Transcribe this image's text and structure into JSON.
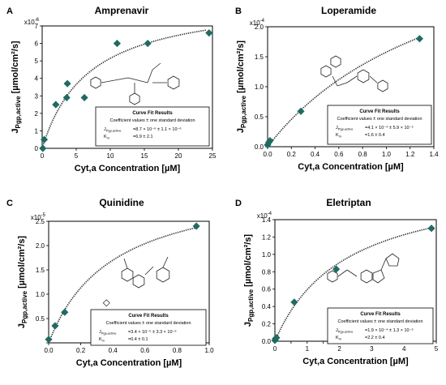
{
  "chart_data": [
    {
      "letter": "A",
      "title": "Amprenavir",
      "type": "scatter",
      "xlabel": "Cyt,a Concentration [µM]",
      "ylabel": "J_Pgp,active [µmol/cm²/s]",
      "y_multiplier": "x10",
      "y_exponent": "-6",
      "xlim": [
        0,
        25
      ],
      "ylim": [
        0,
        7
      ],
      "xticks": [
        0,
        5,
        10,
        15,
        20,
        25
      ],
      "yticks": [
        0,
        1,
        2,
        3,
        4,
        5,
        6,
        7
      ],
      "xtick_labels": [
        "0",
        "5",
        "10",
        "15",
        "20",
        "25"
      ],
      "ytick_labels": [
        "0",
        "1",
        "2",
        "3",
        "4",
        "5",
        "6",
        "7"
      ],
      "points": [
        {
          "x": 0.1,
          "y": 0.0,
          "marker": "filled"
        },
        {
          "x": 0.3,
          "y": 0.5,
          "marker": "filled"
        },
        {
          "x": 2.0,
          "y": 2.5,
          "marker": "filled"
        },
        {
          "x": 3.6,
          "y": 2.9,
          "marker": "filled"
        },
        {
          "x": 3.7,
          "y": 3.7,
          "marker": "filled"
        },
        {
          "x": 6.2,
          "y": 2.9,
          "marker": "filled"
        },
        {
          "x": 11.0,
          "y": 6.0,
          "marker": "filled"
        },
        {
          "x": 15.5,
          "y": 6.0,
          "marker": "filled"
        },
        {
          "x": 24.5,
          "y": 6.6,
          "marker": "filled"
        }
      ],
      "fit": {
        "vmax": 8.7,
        "km": 6.9
      },
      "fitbox": {
        "title": "Curve Fit Results",
        "subtitle": "Coefficient values ± one standard deviation",
        "row1_label": "J_Pgp,active",
        "row1_value": "=8.7 × 10⁻⁶ ± 1.1 × 10⁻⁶",
        "row2_label": "K_m",
        "row2_value": "=6.9 ± 2.1"
      },
      "structure": "amprenavir-structure"
    },
    {
      "letter": "B",
      "title": "Loperamide",
      "type": "scatter",
      "xlabel": "Cyt,a Concentration [µM]",
      "ylabel": "J_Pgp,active [µmol/cm²/s]",
      "y_multiplier": "x10",
      "y_exponent": "-4",
      "xlim": [
        0,
        1.4
      ],
      "ylim": [
        0,
        2.0
      ],
      "xticks": [
        0,
        0.2,
        0.4,
        0.6,
        0.8,
        1.0,
        1.2,
        1.4
      ],
      "yticks": [
        0,
        0.5,
        1.0,
        1.5,
        2.0
      ],
      "xtick_labels": [
        "0.0",
        "0.2",
        "0.4",
        "0.6",
        "0.8",
        "1.0",
        "1.2",
        "1.4"
      ],
      "ytick_labels": [
        "0.0",
        "0.5",
        "1.0",
        "1.5",
        "2.0"
      ],
      "points": [
        {
          "x": 0.0,
          "y": 0.03,
          "marker": "filled"
        },
        {
          "x": 0.01,
          "y": 0.07,
          "marker": "filled"
        },
        {
          "x": 0.02,
          "y": 0.1,
          "marker": "filled"
        },
        {
          "x": 0.28,
          "y": 0.59,
          "marker": "filled"
        },
        {
          "x": 1.28,
          "y": 1.8,
          "marker": "filled"
        }
      ],
      "fit": {
        "vmax": 4.1,
        "km": 1.6
      },
      "fitbox": {
        "title": "Curve Fit Results",
        "subtitle": "Coefficient values ± one standard deviation",
        "row1_label": "J_Pgp,active",
        "row1_value": "=4.1 × 10⁻⁴ ± 5.9 × 10⁻⁵",
        "row2_label": "K_m",
        "row2_value": "=1.6 ± 0.4"
      },
      "structure": "loperamide-structure"
    },
    {
      "letter": "C",
      "title": "Quinidine",
      "type": "scatter",
      "xlabel": "Cyt,a Concentration [µM]",
      "ylabel": "J_Pgp,active [µmol/cm²/s]",
      "y_multiplier": "x10",
      "y_exponent": "-5",
      "xlim": [
        0,
        1.0
      ],
      "ylim": [
        0,
        2.5
      ],
      "xticks": [
        0,
        0.2,
        0.4,
        0.6,
        0.8,
        1.0
      ],
      "yticks": [
        0,
        0.5,
        1.0,
        1.5,
        2.0,
        2.5
      ],
      "xtick_labels": [
        "0.0",
        "0.2",
        "0.4",
        "0.6",
        "0.8",
        "1.0"
      ],
      "ytick_labels": [
        "",
        "0.5",
        "1.0",
        "1.5",
        "2.0",
        "2.5"
      ],
      "points": [
        {
          "x": 0.0,
          "y": 0.07,
          "marker": "filled"
        },
        {
          "x": 0.04,
          "y": 0.35,
          "marker": "filled"
        },
        {
          "x": 0.1,
          "y": 0.63,
          "marker": "filled"
        },
        {
          "x": 0.36,
          "y": 0.82,
          "marker": "open"
        },
        {
          "x": 0.92,
          "y": 2.4,
          "marker": "filled"
        }
      ],
      "fit": {
        "vmax": 3.4,
        "km": 0.4
      },
      "fitbox": {
        "title": "Curve Fit Results",
        "subtitle": "Coefficient values ± one standard deviation",
        "row1_label": "J_Pgp,active",
        "row1_value": "=3.4 × 10⁻⁵ ± 3.3 × 10⁻⁶",
        "row2_label": "K_m",
        "row2_value": "=0.4 ± 0.1"
      },
      "structure": "quinidine-structure"
    },
    {
      "letter": "D",
      "title": "Eletriptan",
      "type": "scatter",
      "xlabel": "Cyt,a Concentration [µM]",
      "ylabel": "J_Pgp,active [µmol/cm²/s]",
      "y_multiplier": "x10",
      "y_exponent": "-4",
      "xlim": [
        0,
        5
      ],
      "ylim": [
        0,
        1.4
      ],
      "xticks": [
        0,
        0.5,
        1,
        1.5,
        2,
        2.5,
        3,
        3.5,
        4,
        4.5,
        5
      ],
      "yticks": [
        0,
        0.2,
        0.4,
        0.6,
        0.8,
        1.0,
        1.2,
        1.4
      ],
      "xtick_labels": [
        "0",
        "",
        "1",
        "",
        "2",
        "",
        "3",
        "",
        "4",
        "",
        "5"
      ],
      "ytick_labels": [
        "0.0",
        "0.2",
        "0.4",
        "0.6",
        "0.8",
        "1.0",
        "1.2",
        "1.4"
      ],
      "points": [
        {
          "x": 0.0,
          "y": 0.01,
          "marker": "filled"
        },
        {
          "x": 0.02,
          "y": 0.03,
          "marker": "filled"
        },
        {
          "x": 0.05,
          "y": 0.04,
          "marker": "filled"
        },
        {
          "x": 0.6,
          "y": 0.45,
          "marker": "filled"
        },
        {
          "x": 1.9,
          "y": 0.83,
          "marker": "filled"
        },
        {
          "x": 4.85,
          "y": 1.3,
          "marker": "filled"
        }
      ],
      "fit": {
        "vmax": 1.9,
        "km": 2.2
      },
      "fitbox": {
        "title": "Curve Fit Results",
        "subtitle": "Coefficient values ± one standard deviation",
        "row1_label": "J_Pgp,active",
        "row1_value": "=1.9 × 10⁻⁴ ± 1.3 × 10⁻⁵",
        "row2_label": "K_m",
        "row2_value": "=2.2 ± 0.4"
      },
      "structure": "eletriptan-structure"
    }
  ],
  "colors": {
    "marker_fill": "#1f6b62",
    "fit_line": "#333333",
    "axis": "#000000"
  }
}
